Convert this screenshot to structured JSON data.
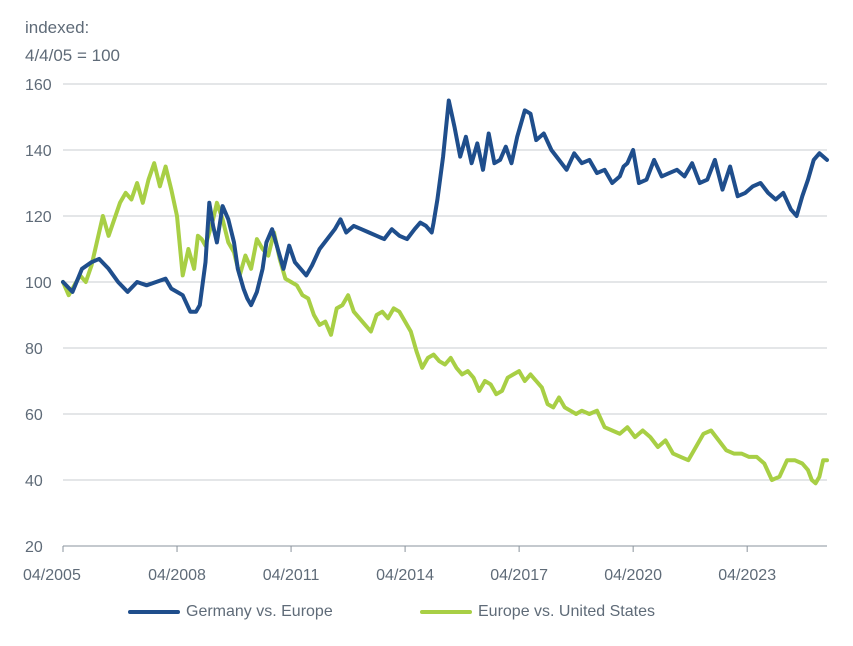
{
  "chart_data": {
    "type": "line",
    "unit_label_1": "indexed:",
    "unit_label_2": "4/4/05 = 100",
    "ylim": [
      20,
      160
    ],
    "yticks": [
      20,
      40,
      60,
      80,
      100,
      120,
      140,
      160
    ],
    "x_tick_labels": [
      "04/2005",
      "04/2008",
      "04/2011",
      "04/2014",
      "04/2017",
      "04/2020",
      "04/2023"
    ],
    "x_tick_years": [
      2005.25,
      2008.25,
      2011.25,
      2014.25,
      2017.25,
      2020.25,
      2023.25
    ],
    "xlim": [
      2005.25,
      2025.35
    ],
    "grid": "horizontal",
    "legend_position": "bottom",
    "series": [
      {
        "name": "Germany vs. Europe",
        "color": "#1f4e8c",
        "x": [
          2005.25,
          2005.5,
          2005.75,
          2006.0,
          2006.2,
          2006.45,
          2006.7,
          2006.95,
          2007.2,
          2007.45,
          2007.7,
          2007.95,
          2008.1,
          2008.25,
          2008.4,
          2008.6,
          2008.75,
          2008.85,
          2009.0,
          2009.1,
          2009.2,
          2009.3,
          2009.45,
          2009.6,
          2009.75,
          2009.85,
          2010.0,
          2010.1,
          2010.2,
          2010.35,
          2010.5,
          2010.6,
          2010.75,
          2010.9,
          2011.05,
          2011.2,
          2011.35,
          2011.5,
          2011.65,
          2011.8,
          2012.0,
          2012.2,
          2012.4,
          2012.55,
          2012.7,
          2012.9,
          2013.1,
          2013.3,
          2013.5,
          2013.7,
          2013.9,
          2014.1,
          2014.3,
          2014.5,
          2014.65,
          2014.8,
          2014.95,
          2015.0,
          2015.1,
          2015.25,
          2015.4,
          2015.55,
          2015.7,
          2015.85,
          2016.0,
          2016.15,
          2016.3,
          2016.45,
          2016.6,
          2016.75,
          2016.9,
          2017.05,
          2017.2,
          2017.4,
          2017.55,
          2017.7,
          2017.9,
          2018.1,
          2018.3,
          2018.5,
          2018.7,
          2018.9,
          2019.1,
          2019.3,
          2019.5,
          2019.7,
          2019.9,
          2020.0,
          2020.1,
          2020.25,
          2020.4,
          2020.6,
          2020.8,
          2021.0,
          2021.2,
          2021.4,
          2021.6,
          2021.8,
          2022.0,
          2022.2,
          2022.4,
          2022.6,
          2022.8,
          2023.0,
          2023.2,
          2023.4,
          2023.6,
          2023.8,
          2024.0,
          2024.2,
          2024.4,
          2024.55,
          2024.7,
          2024.85,
          2025.0,
          2025.15,
          2025.35
        ],
        "values": [
          100,
          97,
          104,
          106,
          107,
          104,
          100,
          97,
          100,
          99,
          100,
          101,
          98,
          97,
          96,
          91,
          91,
          93,
          106,
          124,
          117,
          112,
          123,
          119,
          112,
          104,
          98,
          95,
          93,
          97,
          104,
          112,
          116,
          110,
          104,
          111,
          106,
          104,
          102,
          105,
          110,
          113,
          116,
          119,
          115,
          117,
          116,
          115,
          114,
          113,
          116,
          114,
          113,
          116,
          118,
          117,
          115,
          118,
          125,
          138,
          155,
          147,
          138,
          144,
          136,
          142,
          134,
          145,
          136,
          137,
          141,
          136,
          144,
          152,
          151,
          143,
          145,
          140,
          137,
          134,
          139,
          136,
          137,
          133,
          134,
          130,
          132,
          135,
          136,
          140,
          130,
          131,
          137,
          132,
          133,
          134,
          132,
          136,
          130,
          131,
          137,
          128,
          135,
          126,
          127,
          129,
          130,
          127,
          125,
          127,
          122,
          120,
          126,
          131,
          137,
          139,
          137
        ]
      },
      {
        "name": "Europe vs. United States",
        "color": "#a8cf45",
        "x": [
          2005.25,
          2005.4,
          2005.55,
          2005.7,
          2005.85,
          2006.0,
          2006.1,
          2006.2,
          2006.3,
          2006.45,
          2006.6,
          2006.75,
          2006.9,
          2007.05,
          2007.2,
          2007.35,
          2007.5,
          2007.65,
          2007.8,
          2007.95,
          2008.1,
          2008.25,
          2008.4,
          2008.55,
          2008.7,
          2008.8,
          2008.9,
          2009.0,
          2009.1,
          2009.2,
          2009.3,
          2009.45,
          2009.6,
          2009.75,
          2009.9,
          2010.05,
          2010.2,
          2010.35,
          2010.5,
          2010.65,
          2010.8,
          2010.95,
          2011.1,
          2011.25,
          2011.4,
          2011.55,
          2011.7,
          2011.85,
          2012.0,
          2012.15,
          2012.3,
          2012.45,
          2012.6,
          2012.75,
          2012.9,
          2013.05,
          2013.2,
          2013.35,
          2013.5,
          2013.65,
          2013.8,
          2013.95,
          2014.1,
          2014.25,
          2014.4,
          2014.55,
          2014.7,
          2014.85,
          2015.0,
          2015.15,
          2015.3,
          2015.45,
          2015.6,
          2015.75,
          2015.9,
          2016.05,
          2016.2,
          2016.35,
          2016.5,
          2016.65,
          2016.8,
          2016.95,
          2017.1,
          2017.25,
          2017.4,
          2017.55,
          2017.7,
          2017.85,
          2018.0,
          2018.15,
          2018.3,
          2018.45,
          2018.6,
          2018.75,
          2018.9,
          2019.1,
          2019.3,
          2019.5,
          2019.7,
          2019.9,
          2020.1,
          2020.3,
          2020.5,
          2020.7,
          2020.9,
          2021.1,
          2021.3,
          2021.5,
          2021.7,
          2021.9,
          2022.1,
          2022.3,
          2022.5,
          2022.7,
          2022.9,
          2023.1,
          2023.3,
          2023.5,
          2023.7,
          2023.9,
          2024.1,
          2024.3,
          2024.5,
          2024.7,
          2024.85,
          2024.95,
          2025.05,
          2025.15,
          2025.25,
          2025.35
        ],
        "values": [
          100,
          96,
          99,
          102,
          100,
          105,
          110,
          115,
          120,
          114,
          119,
          124,
          127,
          125,
          130,
          124,
          131,
          136,
          129,
          135,
          128,
          120,
          102,
          110,
          104,
          114,
          113,
          111,
          115,
          119,
          124,
          119,
          112,
          109,
          102,
          108,
          104,
          113,
          110,
          108,
          115,
          107,
          101,
          100,
          99,
          96,
          95,
          90,
          87,
          88,
          84,
          92,
          93,
          96,
          91,
          89,
          87,
          85,
          90,
          91,
          89,
          92,
          91,
          88,
          85,
          79,
          74,
          77,
          78,
          76,
          75,
          77,
          74,
          72,
          73,
          71,
          67,
          70,
          69,
          66,
          67,
          71,
          72,
          73,
          70,
          72,
          70,
          68,
          63,
          62,
          65,
          62,
          61,
          60,
          61,
          60,
          61,
          56,
          55,
          54,
          56,
          53,
          55,
          53,
          50,
          52,
          48,
          47,
          46,
          50,
          54,
          55,
          52,
          49,
          48,
          48,
          47,
          47,
          45,
          40,
          41,
          46,
          46,
          45,
          43,
          40,
          39,
          41,
          46,
          46
        ]
      }
    ]
  }
}
